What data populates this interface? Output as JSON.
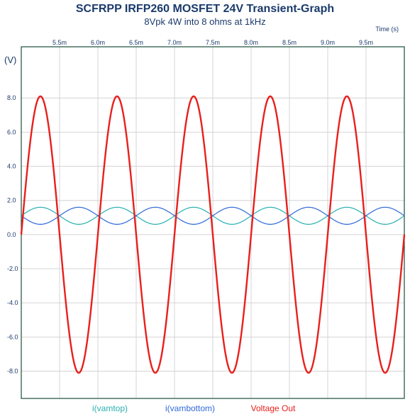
{
  "chart_data": {
    "type": "line",
    "title": "SCFRPP IRFP260 MOSFET 24V Transient-Graph",
    "subtitle": "8Vpk 4W into 8 ohms at 1kHz",
    "xlabel": "Time  (s)",
    "ylabel": "(V)",
    "xlim": [
      5.0,
      10.0
    ],
    "ylim": [
      -9.6,
      11.0
    ],
    "x_ticks": [
      5.5,
      6.0,
      6.5,
      7.0,
      7.5,
      8.0,
      8.5,
      9.0,
      9.5
    ],
    "x_tick_labels": [
      "5.5m",
      "6.0m",
      "6.5m",
      "7.0m",
      "7.5m",
      "8.0m",
      "8.5m",
      "9.0m",
      "9.5m"
    ],
    "y_ticks": [
      8.0,
      6.0,
      4.0,
      2.0,
      0.0,
      -2.0,
      -4.0,
      -6.0,
      -8.0
    ],
    "y_tick_labels": [
      "8.0",
      "6.0",
      "4.0",
      "2.0",
      "0.0",
      "-2.0",
      "-4.0",
      "-6.0",
      "-8.0"
    ],
    "grid": true,
    "legend_position": "bottom",
    "series": [
      {
        "name": "i(vamtop)",
        "color": "#2ab0b0",
        "shape": "sine",
        "offset": 1.1,
        "amplitude": 0.5,
        "frequency_khz": 1.0,
        "phase_deg": 0,
        "points": [
          {
            "x": 5.0,
            "y": 1.1
          },
          {
            "x": 5.25,
            "y": 1.6
          },
          {
            "x": 5.5,
            "y": 1.1
          },
          {
            "x": 5.75,
            "y": 0.6
          },
          {
            "x": 6.0,
            "y": 1.1
          },
          {
            "x": 6.25,
            "y": 1.6
          },
          {
            "x": 6.5,
            "y": 1.1
          },
          {
            "x": 6.75,
            "y": 0.6
          },
          {
            "x": 7.0,
            "y": 1.1
          },
          {
            "x": 7.25,
            "y": 1.6
          },
          {
            "x": 7.5,
            "y": 1.1
          },
          {
            "x": 7.75,
            "y": 0.6
          },
          {
            "x": 8.0,
            "y": 1.1
          },
          {
            "x": 8.25,
            "y": 1.6
          },
          {
            "x": 8.5,
            "y": 1.1
          },
          {
            "x": 8.75,
            "y": 0.6
          },
          {
            "x": 9.0,
            "y": 1.1
          },
          {
            "x": 9.25,
            "y": 1.6
          },
          {
            "x": 9.5,
            "y": 1.1
          },
          {
            "x": 9.75,
            "y": 0.6
          },
          {
            "x": 10.0,
            "y": 1.1
          }
        ]
      },
      {
        "name": "i(vambottom)",
        "color": "#2f6ad9",
        "shape": "sine",
        "offset": 1.1,
        "amplitude": -0.5,
        "frequency_khz": 1.0,
        "phase_deg": 0,
        "points": [
          {
            "x": 5.0,
            "y": 1.1
          },
          {
            "x": 5.25,
            "y": 0.6
          },
          {
            "x": 5.5,
            "y": 1.1
          },
          {
            "x": 5.75,
            "y": 1.6
          },
          {
            "x": 6.0,
            "y": 1.1
          },
          {
            "x": 6.25,
            "y": 0.6
          },
          {
            "x": 6.5,
            "y": 1.1
          },
          {
            "x": 6.75,
            "y": 1.6
          },
          {
            "x": 7.0,
            "y": 1.1
          },
          {
            "x": 7.25,
            "y": 0.6
          },
          {
            "x": 7.5,
            "y": 1.1
          },
          {
            "x": 7.75,
            "y": 1.6
          },
          {
            "x": 8.0,
            "y": 1.1
          },
          {
            "x": 8.25,
            "y": 0.6
          },
          {
            "x": 8.5,
            "y": 1.1
          },
          {
            "x": 8.75,
            "y": 1.6
          },
          {
            "x": 9.0,
            "y": 1.1
          },
          {
            "x": 9.25,
            "y": 0.6
          },
          {
            "x": 9.5,
            "y": 1.1
          },
          {
            "x": 9.75,
            "y": 1.6
          },
          {
            "x": 10.0,
            "y": 1.1
          }
        ]
      },
      {
        "name": "Voltage Out",
        "color": "#e8201c",
        "shape": "sine",
        "offset": 0.0,
        "amplitude": 8.1,
        "frequency_khz": 1.0,
        "phase_deg": 0,
        "points": [
          {
            "x": 5.0,
            "y": 0.0
          },
          {
            "x": 5.25,
            "y": 8.1
          },
          {
            "x": 5.5,
            "y": 0.0
          },
          {
            "x": 5.75,
            "y": -8.1
          },
          {
            "x": 6.0,
            "y": 0.0
          },
          {
            "x": 6.25,
            "y": 8.1
          },
          {
            "x": 6.5,
            "y": 0.0
          },
          {
            "x": 6.75,
            "y": -8.1
          },
          {
            "x": 7.0,
            "y": 0.0
          },
          {
            "x": 7.25,
            "y": 8.1
          },
          {
            "x": 7.5,
            "y": 0.0
          },
          {
            "x": 7.75,
            "y": -8.1
          },
          {
            "x": 8.0,
            "y": 0.0
          },
          {
            "x": 8.25,
            "y": 8.1
          },
          {
            "x": 8.5,
            "y": 0.0
          },
          {
            "x": 8.75,
            "y": -8.1
          },
          {
            "x": 9.0,
            "y": 0.0
          },
          {
            "x": 9.25,
            "y": 8.1
          },
          {
            "x": 9.5,
            "y": 0.0
          },
          {
            "x": 9.75,
            "y": -8.1
          },
          {
            "x": 10.0,
            "y": 0.0
          }
        ]
      }
    ]
  }
}
